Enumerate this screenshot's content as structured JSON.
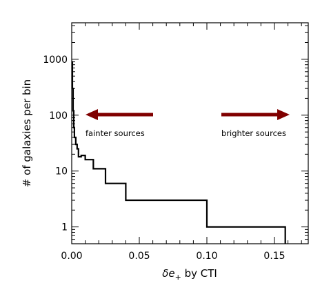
{
  "chart_data": {
    "type": "line",
    "title": "",
    "xlabel_symbol": "δe",
    "xlabel_subscript": "+",
    "xlabel_rest": " by CTI",
    "ylabel": "# of galaxies per bin",
    "xlim": [
      0.0,
      0.175
    ],
    "ylim": [
      0.5,
      4500
    ],
    "yscale": "log",
    "x_ticks": [
      0.0,
      0.05,
      0.1,
      0.15
    ],
    "x_tick_labels": [
      "0.00",
      "0.05",
      "0.10",
      "0.15"
    ],
    "y_ticks": [
      1,
      10,
      100,
      1000
    ],
    "y_tick_labels": [
      "1",
      "10",
      "100",
      "1000"
    ],
    "grid": false,
    "series": [
      {
        "color": "#000000",
        "step_edges": [
          0.0,
          0.0005,
          0.001,
          0.0015,
          0.002,
          0.003,
          0.004,
          0.005,
          0.007,
          0.01,
          0.016,
          0.025,
          0.04,
          0.1,
          0.158
        ],
        "counts": [
          900,
          300,
          120,
          60,
          40,
          30,
          25,
          18,
          19,
          16,
          11,
          6,
          3,
          1
        ]
      }
    ],
    "annotations": [
      {
        "text": "fainter sources",
        "arrow": "left",
        "color": "#800000"
      },
      {
        "text": "brighter sources",
        "arrow": "right",
        "color": "#800000"
      }
    ]
  }
}
